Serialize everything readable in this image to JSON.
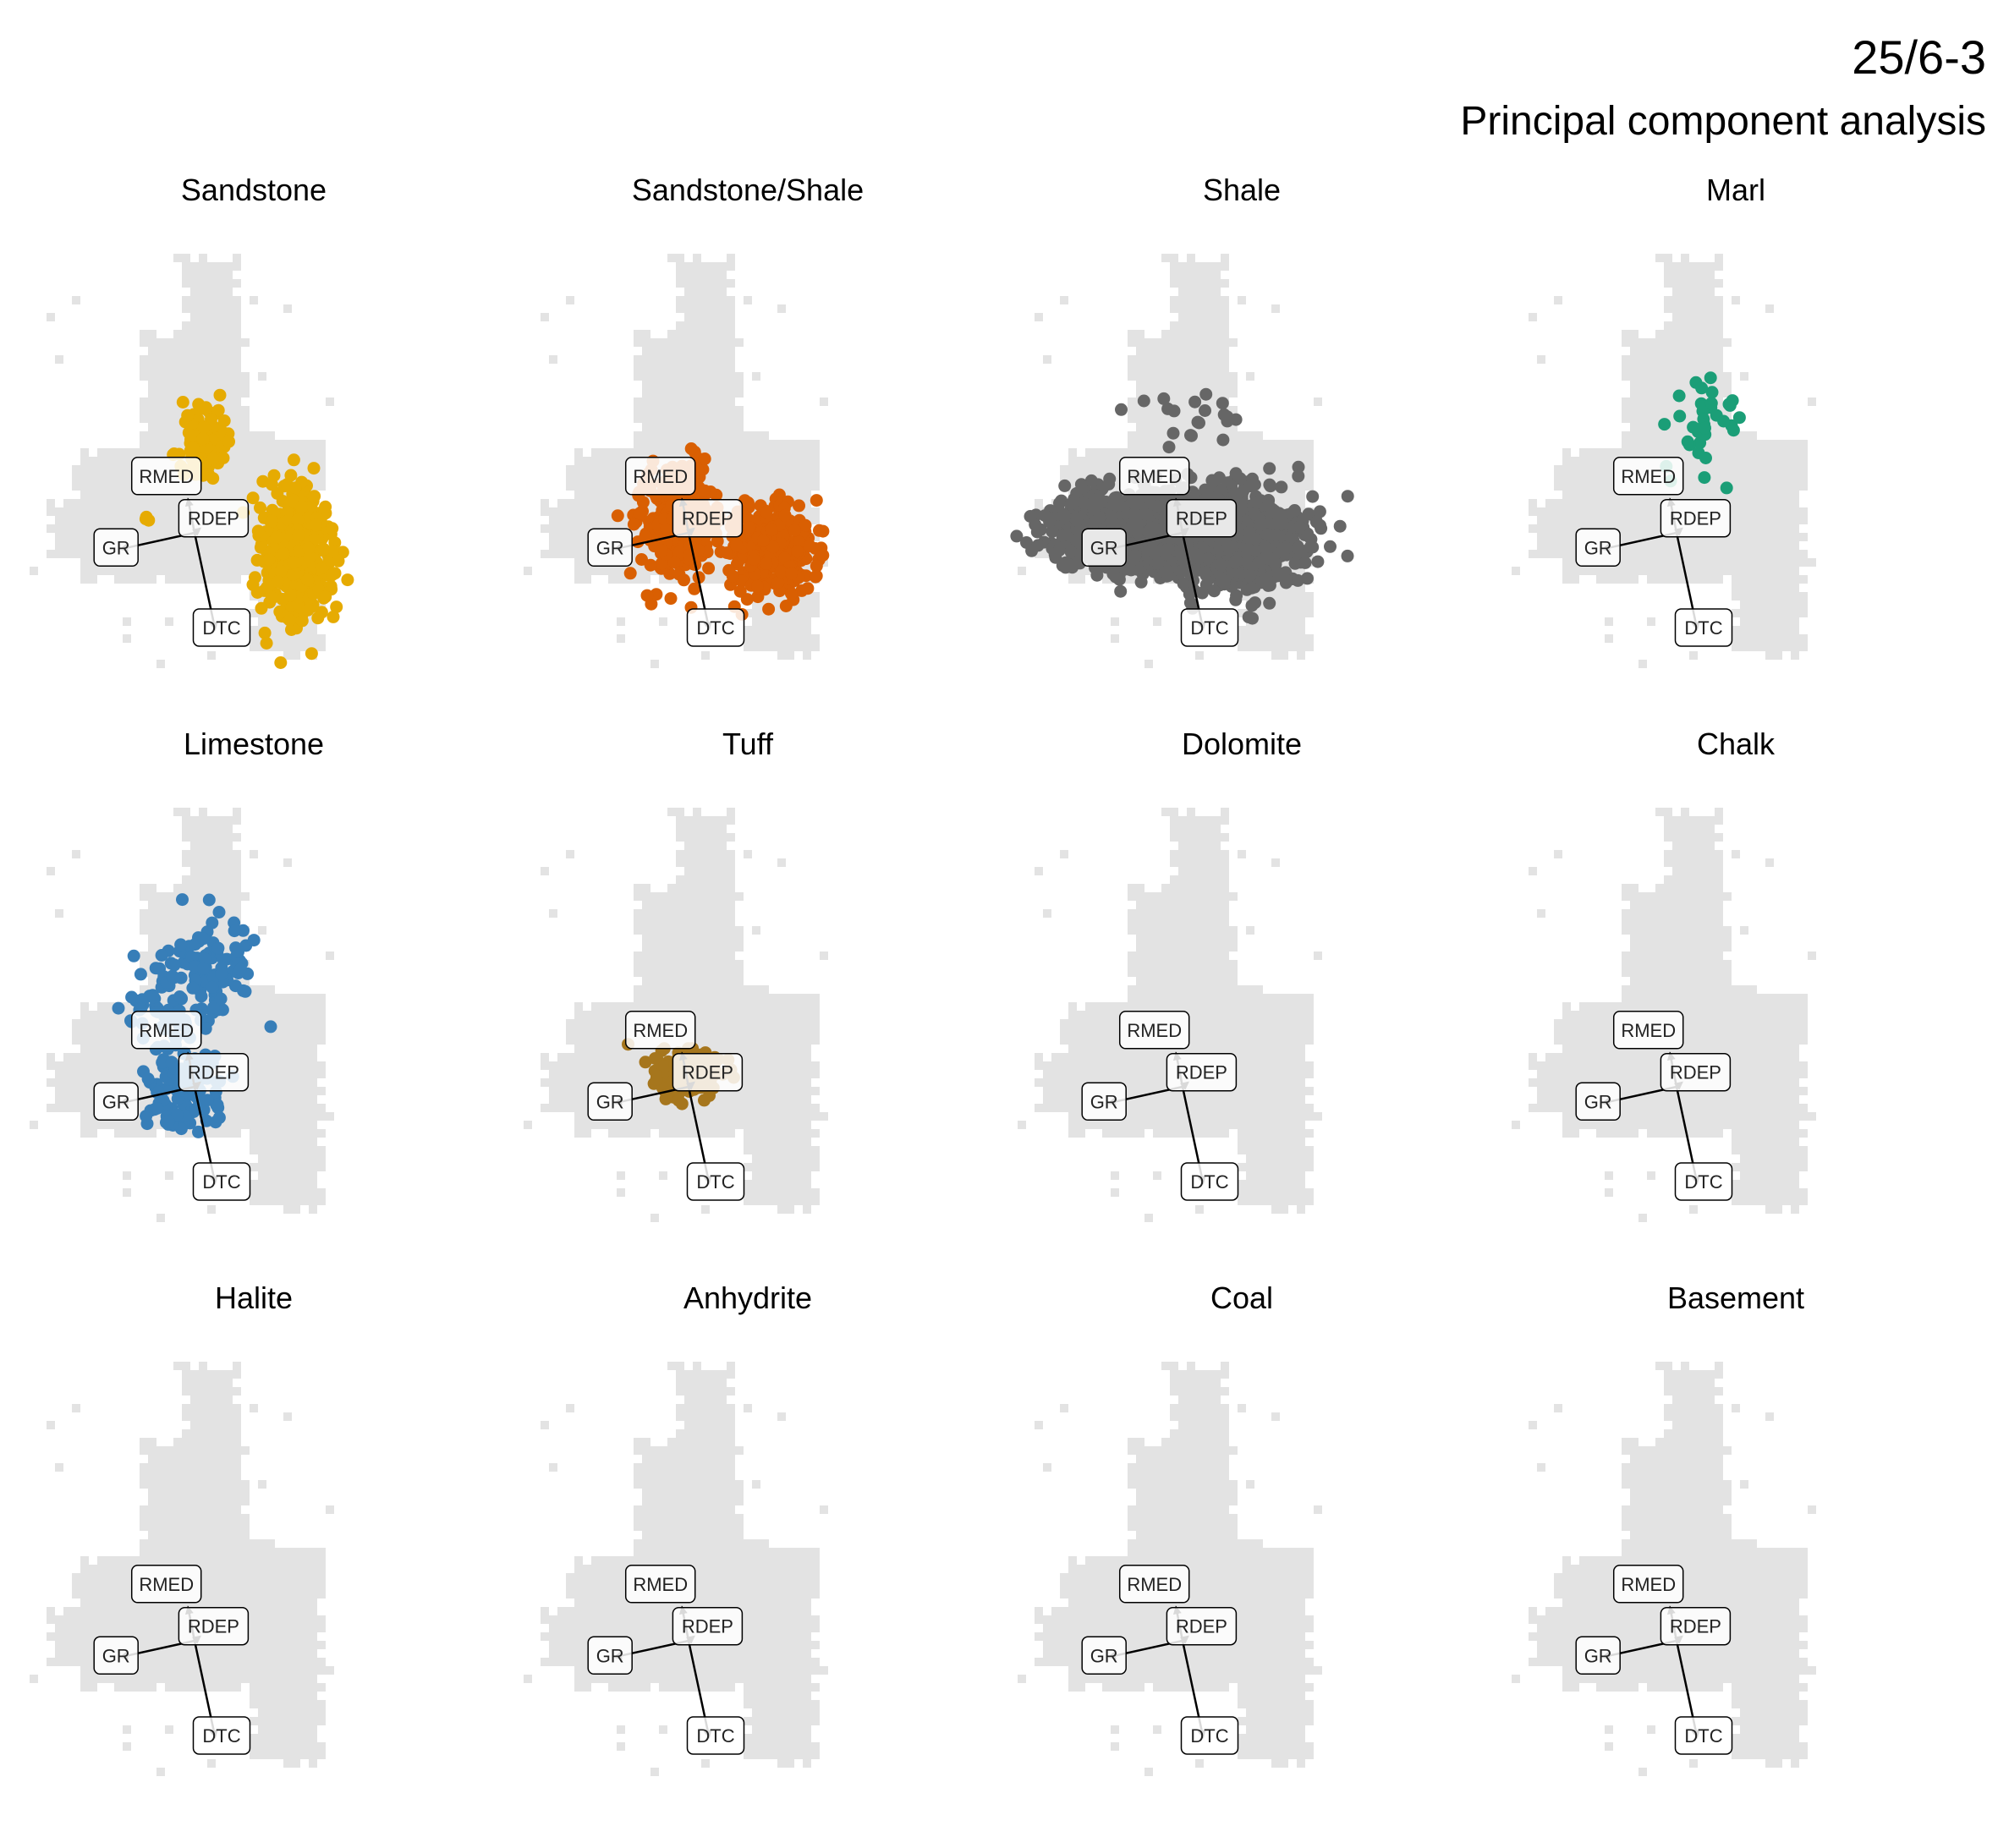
{
  "title": "25/6-3",
  "subtitle": "Principal component analysis",
  "colors": {
    "background_cloud": "#e3e3e3",
    "arrow": "#000000",
    "label_box_fill": "#ffffff",
    "label_box_stroke": "#000000"
  },
  "chart_data": {
    "type": "scatter",
    "facet_layout": {
      "rows": 3,
      "cols": 4
    },
    "grid": false,
    "axes_visible": false,
    "loadings": [
      {
        "name": "RMED",
        "x": -0.12,
        "y": 0.62
      },
      {
        "name": "RDEP",
        "x": 0.1,
        "y": 0.08
      },
      {
        "name": "GR",
        "x": -1.36,
        "y": -0.3
      },
      {
        "name": "DTC",
        "x": 0.38,
        "y": -1.78
      }
    ],
    "facets": [
      {
        "name": "Sandstone",
        "color": "#E6AB02",
        "clusters": [
          {
            "cx": 0.15,
            "cy": 1.65,
            "sx": 0.18,
            "sy": 0.35,
            "n": 140
          },
          {
            "cx": 1.85,
            "cy": -0.35,
            "sx": 0.32,
            "sy": 0.55,
            "n": 520
          },
          {
            "cx": -0.85,
            "cy": 0.35,
            "sx": 0.05,
            "sy": 0.1,
            "n": 3
          }
        ]
      },
      {
        "name": "Sandstone/Shale",
        "color": "#D95F02",
        "clusters": [
          {
            "cx": -0.25,
            "cy": 0.15,
            "sx": 0.35,
            "sy": 0.45,
            "n": 260
          },
          {
            "cx": 1.55,
            "cy": -0.3,
            "sx": 0.42,
            "sy": 0.45,
            "n": 300
          },
          {
            "cx": 0.0,
            "cy": 1.15,
            "sx": 0.15,
            "sy": 0.18,
            "n": 25
          }
        ]
      },
      {
        "name": "Shale",
        "color": "#666666",
        "clusters": [
          {
            "cx": -0.8,
            "cy": 0.0,
            "sx": 0.75,
            "sy": 0.35,
            "n": 900
          },
          {
            "cx": 1.0,
            "cy": -0.1,
            "sx": 0.65,
            "sy": 0.45,
            "n": 800
          },
          {
            "cx": 0.3,
            "cy": 2.0,
            "sx": 0.5,
            "sy": 0.35,
            "n": 20
          }
        ]
      },
      {
        "name": "Marl",
        "color": "#1B9E77",
        "clusters": [
          {
            "cx": 0.55,
            "cy": 2.0,
            "sx": 0.4,
            "sy": 0.5,
            "n": 35
          }
        ]
      },
      {
        "name": "Limestone",
        "color": "#377EB8",
        "clusters": [
          {
            "cx": 0.35,
            "cy": 2.2,
            "sx": 0.35,
            "sy": 0.45,
            "n": 90
          },
          {
            "cx": -0.55,
            "cy": 1.5,
            "sx": 0.35,
            "sy": 0.45,
            "n": 70
          },
          {
            "cx": -0.25,
            "cy": -0.1,
            "sx": 0.35,
            "sy": 0.35,
            "n": 110
          }
        ]
      },
      {
        "name": "Tuff",
        "color": "#A6761D",
        "clusters": [
          {
            "cx": -0.05,
            "cy": 0.25,
            "sx": 0.3,
            "sy": 0.22,
            "n": 180
          },
          {
            "cx": -1.1,
            "cy": 0.8,
            "sx": 0.03,
            "sy": 0.03,
            "n": 1
          }
        ]
      },
      {
        "name": "Dolomite",
        "color": "#999999",
        "clusters": []
      },
      {
        "name": "Chalk",
        "color": "#999999",
        "clusters": []
      },
      {
        "name": "Halite",
        "color": "#999999",
        "clusters": []
      },
      {
        "name": "Anhydrite",
        "color": "#999999",
        "clusters": []
      },
      {
        "name": "Coal",
        "color": "#999999",
        "clusters": []
      },
      {
        "name": "Basement",
        "color": "#999999",
        "clusters": []
      }
    ]
  }
}
